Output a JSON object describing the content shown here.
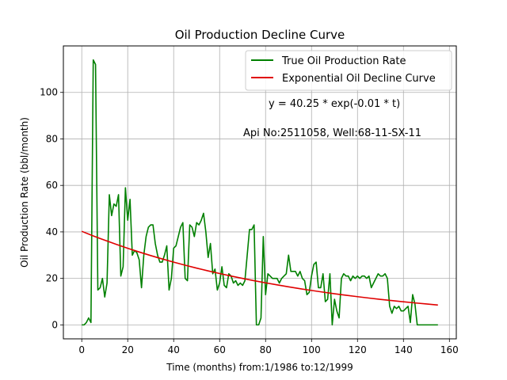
{
  "chart_data": {
    "type": "line",
    "title": "Oil Production Decline Curve",
    "xlabel": "Time (months) from:1/1986 to:12/1999",
    "ylabel": "Oil Production Rate (bbl/month)",
    "xlim": [
      -8,
      163
    ],
    "ylim": [
      -6,
      120
    ],
    "xticks": [
      0,
      20,
      40,
      60,
      80,
      100,
      120,
      140,
      160
    ],
    "yticks": [
      0,
      20,
      40,
      60,
      80,
      100
    ],
    "grid": true,
    "legend_position": "top-right",
    "annotations": [
      "y = 40.25 * exp(-0.01 * t)",
      "Api No:2511058, Well:68-11-SX-11"
    ],
    "series": [
      {
        "name": "True Oil Production Rate",
        "color": "#008000",
        "x": [
          0,
          1,
          2,
          3,
          4,
          5,
          6,
          7,
          8,
          9,
          10,
          11,
          12,
          13,
          14,
          15,
          16,
          17,
          18,
          19,
          20,
          21,
          22,
          23,
          24,
          25,
          26,
          27,
          28,
          29,
          30,
          31,
          32,
          33,
          34,
          35,
          36,
          37,
          38,
          39,
          40,
          41,
          42,
          43,
          44,
          45,
          46,
          47,
          48,
          49,
          50,
          51,
          52,
          53,
          54,
          55,
          56,
          57,
          58,
          59,
          60,
          61,
          62,
          63,
          64,
          65,
          66,
          67,
          68,
          69,
          70,
          71,
          72,
          73,
          74,
          75,
          76,
          77,
          78,
          79,
          80,
          81,
          82,
          83,
          84,
          85,
          86,
          87,
          88,
          89,
          90,
          91,
          92,
          93,
          94,
          95,
          96,
          97,
          98,
          99,
          100,
          101,
          102,
          103,
          104,
          105,
          106,
          107,
          108,
          109,
          110,
          111,
          112,
          113,
          114,
          115,
          116,
          117,
          118,
          119,
          120,
          121,
          122,
          123,
          124,
          125,
          126,
          127,
          128,
          129,
          130,
          131,
          132,
          133,
          134,
          135,
          136,
          137,
          138,
          139,
          140,
          141,
          142,
          143,
          144,
          145,
          146,
          147,
          148,
          149,
          150,
          151,
          152,
          153,
          154,
          155
        ],
        "values": [
          0,
          0,
          1,
          3,
          1,
          114,
          112,
          15,
          16,
          20,
          12,
          18,
          56,
          47,
          52,
          51,
          56,
          21,
          25,
          59,
          45,
          54,
          30,
          32,
          31,
          28,
          16,
          30,
          38,
          42,
          43,
          43,
          35,
          30,
          27,
          27,
          30,
          34,
          15,
          20,
          33,
          34,
          38,
          42,
          44,
          20,
          19,
          43,
          42,
          38,
          44,
          43,
          45,
          48,
          40,
          29,
          35,
          22,
          24,
          15,
          18,
          25,
          17,
          16,
          22,
          21,
          18,
          19,
          17,
          18,
          17,
          19,
          30,
          41,
          41,
          43,
          0,
          0,
          3,
          38,
          13,
          22,
          21,
          20,
          20,
          20,
          18,
          20,
          21,
          22,
          30,
          23,
          23,
          23,
          21,
          23,
          20,
          19,
          13,
          14,
          21,
          26,
          27,
          16,
          16,
          22,
          10,
          11,
          22,
          0,
          11,
          6,
          3,
          20,
          22,
          21,
          21,
          19,
          21,
          20,
          21,
          20,
          21,
          21,
          20,
          21,
          16,
          18,
          20,
          22,
          21,
          21,
          22,
          20,
          8,
          5,
          8,
          7,
          8,
          6,
          6,
          7,
          8,
          1,
          13,
          9,
          0,
          0,
          0,
          0,
          0,
          0,
          0,
          0,
          0,
          0
        ]
      },
      {
        "name": "Exponential Oil Decline Curve",
        "color": "#e00000",
        "x": [
          0,
          5,
          10,
          15,
          20,
          25,
          30,
          35,
          40,
          45,
          50,
          55,
          60,
          65,
          70,
          75,
          80,
          85,
          90,
          95,
          100,
          105,
          110,
          115,
          120,
          125,
          130,
          135,
          140,
          145,
          150,
          155
        ],
        "values": [
          40.25,
          38.28,
          36.42,
          34.65,
          32.95,
          31.35,
          29.82,
          28.37,
          26.98,
          25.67,
          24.42,
          23.23,
          22.09,
          21.02,
          19.99,
          19.02,
          18.09,
          17.21,
          16.37,
          15.57,
          14.81,
          14.09,
          13.4,
          12.75,
          12.13,
          11.54,
          10.97,
          10.44,
          9.93,
          9.45,
          8.99,
          8.55
        ]
      }
    ]
  }
}
